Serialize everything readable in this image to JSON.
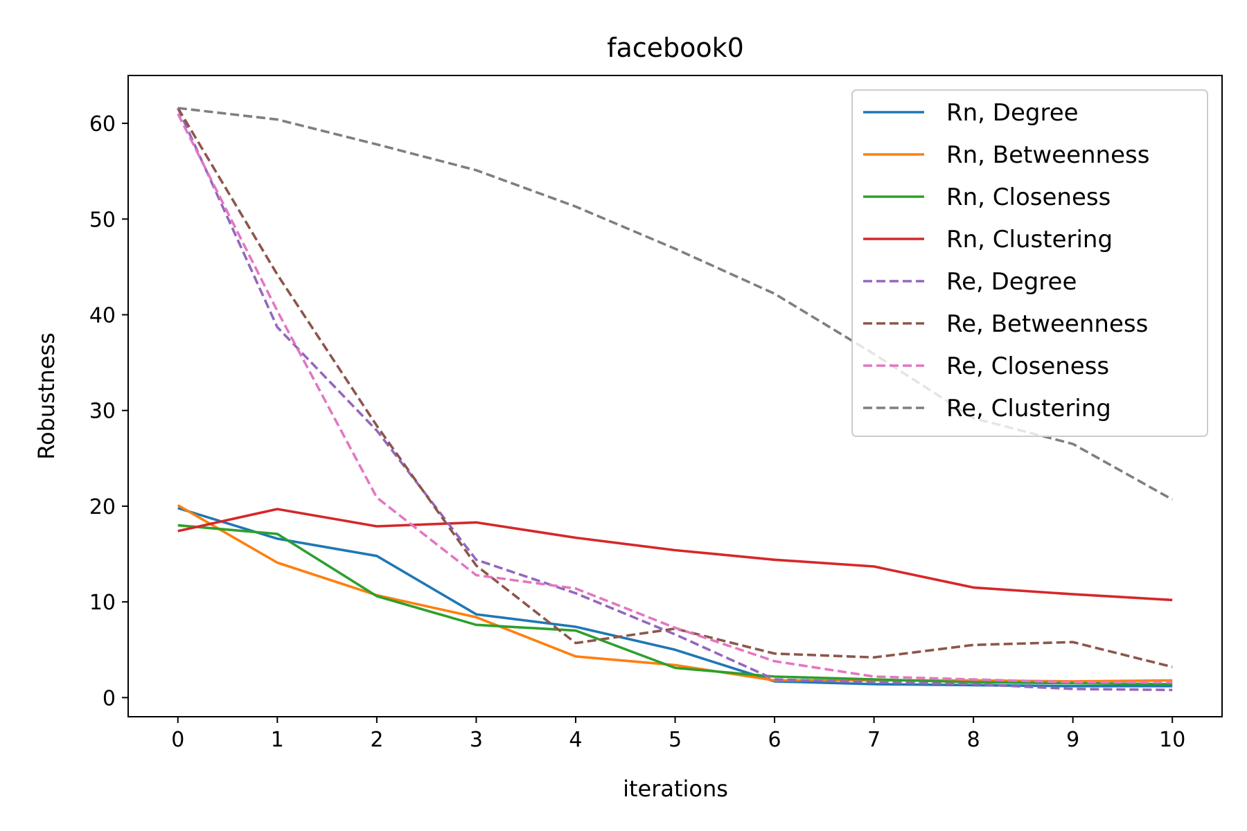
{
  "chart_data": {
    "type": "line",
    "title": "facebook0",
    "xlabel": "iterations",
    "ylabel": "Robustness",
    "xlim": [
      -0.5,
      10.5
    ],
    "ylim": [
      -2,
      65
    ],
    "xticks": [
      0,
      1,
      2,
      3,
      4,
      5,
      6,
      7,
      8,
      9,
      10
    ],
    "yticks": [
      0,
      10,
      20,
      30,
      40,
      50,
      60
    ],
    "grid": false,
    "legend_position": "top-right",
    "x": [
      0,
      1,
      2,
      3,
      4,
      5,
      6,
      7,
      8,
      9,
      10
    ],
    "series": [
      {
        "name": "Rn, Degree",
        "color": "#1f77b4",
        "dash": "solid",
        "values": [
          19.8,
          16.6,
          14.8,
          8.7,
          7.4,
          5.0,
          1.7,
          1.4,
          1.3,
          1.2,
          1.2
        ]
      },
      {
        "name": "Rn, Betweenness",
        "color": "#ff7f0e",
        "dash": "solid",
        "values": [
          20.1,
          14.1,
          10.7,
          8.4,
          4.3,
          3.4,
          1.8,
          1.8,
          1.8,
          1.7,
          1.8
        ]
      },
      {
        "name": "Rn, Closeness",
        "color": "#2ca02c",
        "dash": "solid",
        "values": [
          18.0,
          17.1,
          10.6,
          7.6,
          7.0,
          3.1,
          2.2,
          1.9,
          1.6,
          1.5,
          1.4
        ]
      },
      {
        "name": "Rn, Clustering",
        "color": "#d62728",
        "dash": "solid",
        "values": [
          17.4,
          19.7,
          17.9,
          18.3,
          16.7,
          15.4,
          14.4,
          13.7,
          11.5,
          10.8,
          10.2
        ]
      },
      {
        "name": "Re, Degree",
        "color": "#9467bd",
        "dash": "dashed",
        "values": [
          61.6,
          38.7,
          27.9,
          14.4,
          10.9,
          6.6,
          1.9,
          1.6,
          1.4,
          0.9,
          0.8
        ]
      },
      {
        "name": "Re, Betweenness",
        "color": "#8c564b",
        "dash": "dashed",
        "values": [
          61.6,
          44.2,
          28.4,
          13.8,
          5.7,
          7.2,
          4.6,
          4.2,
          5.5,
          5.8,
          3.2
        ]
      },
      {
        "name": "Re, Closeness",
        "color": "#e377c2",
        "dash": "dashed",
        "values": [
          61.0,
          40.4,
          20.9,
          12.8,
          11.4,
          7.3,
          3.8,
          2.2,
          1.9,
          1.6,
          1.6
        ]
      },
      {
        "name": "Re, Clustering",
        "color": "#7f7f7f",
        "dash": "dashed",
        "values": [
          61.6,
          60.4,
          57.8,
          55.1,
          51.3,
          46.9,
          42.2,
          35.9,
          29.2,
          26.5,
          20.7
        ]
      }
    ]
  }
}
